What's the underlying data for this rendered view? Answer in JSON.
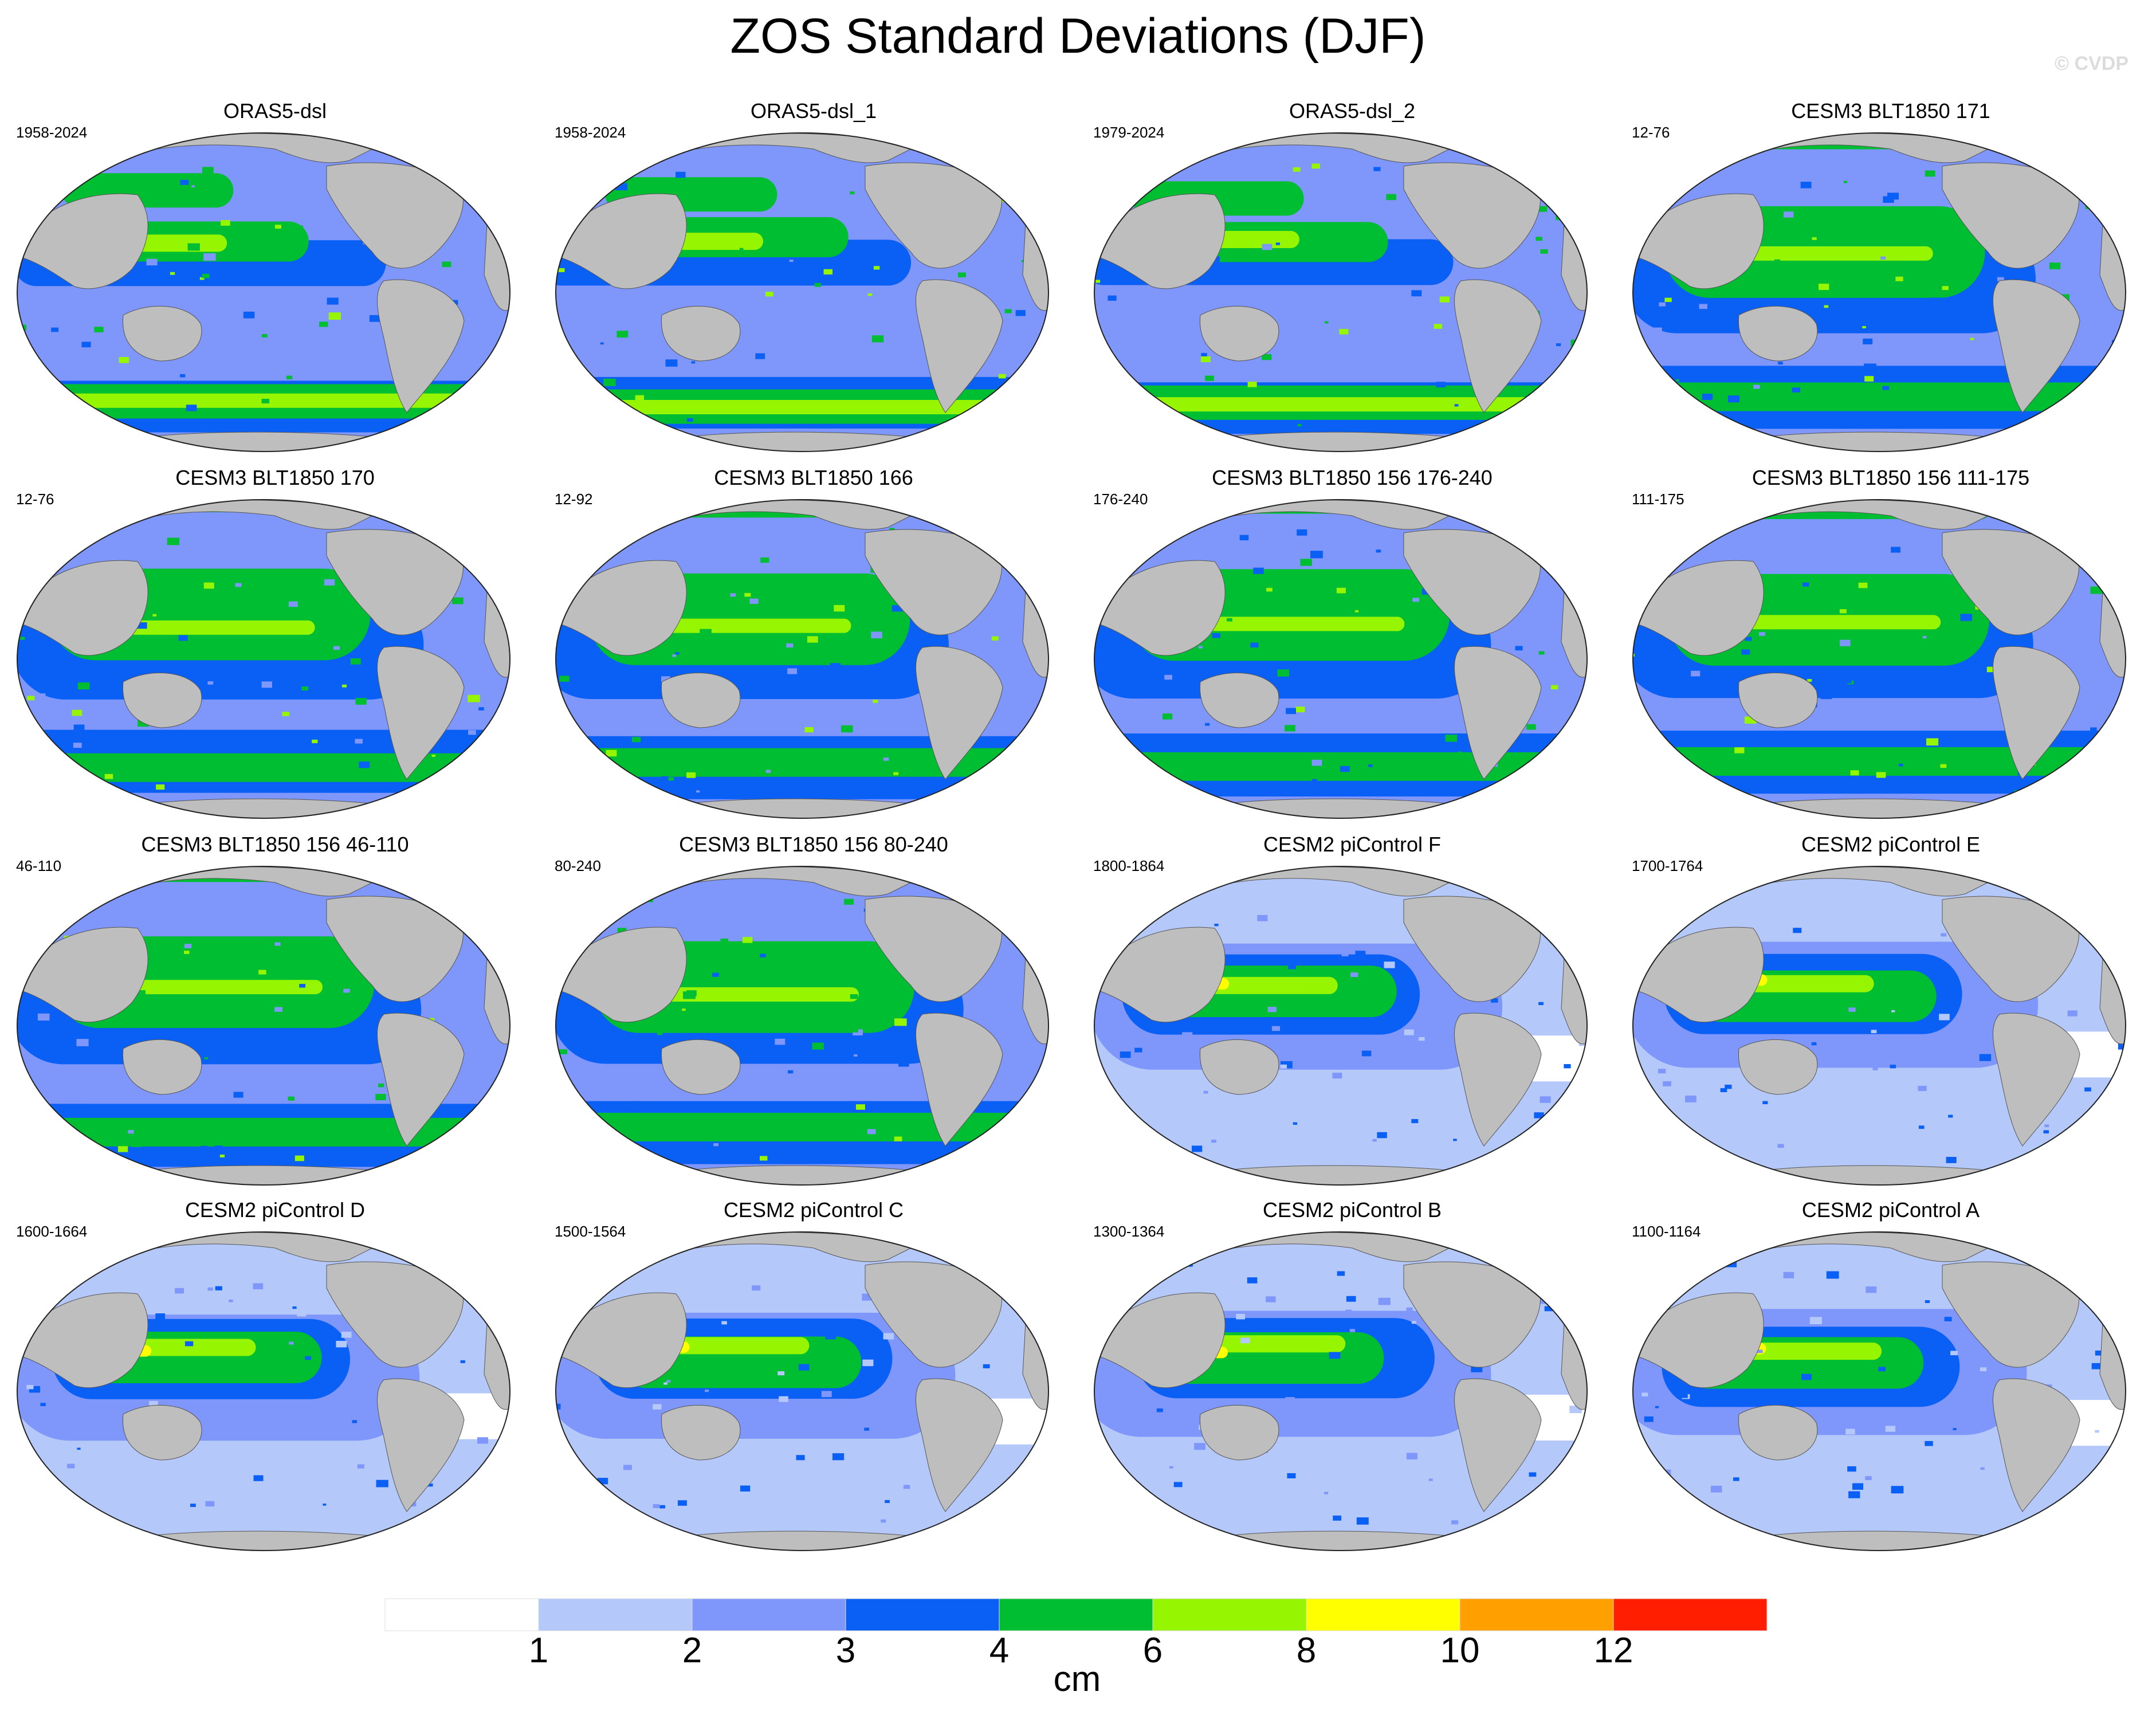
{
  "title": "ZOS Standard Deviations (DJF)",
  "watermark": "© CVDP",
  "panels": [
    {
      "title": "ORAS5-dsl",
      "years": "1958-2024",
      "style": "oras",
      "seed": 1
    },
    {
      "title": "ORAS5-dsl_1",
      "years": "1958-2024",
      "style": "oras",
      "seed": 2
    },
    {
      "title": "ORAS5-dsl_2",
      "years": "1979-2024",
      "style": "oras",
      "seed": 3
    },
    {
      "title": "CESM3 BLT1850 171",
      "years": "12-76",
      "style": "cesm3",
      "seed": 4
    },
    {
      "title": "CESM3 BLT1850 170",
      "years": "12-76",
      "style": "cesm3",
      "seed": 5
    },
    {
      "title": "CESM3 BLT1850 166",
      "years": "12-92",
      "style": "cesm3",
      "seed": 6
    },
    {
      "title": "CESM3 BLT1850 156 176-240",
      "years": "176-240",
      "style": "cesm3",
      "seed": 7
    },
    {
      "title": "CESM3 BLT1850 156 111-175",
      "years": "111-175",
      "style": "cesm3",
      "seed": 8
    },
    {
      "title": "CESM3 BLT1850 156 46-110",
      "years": "46-110",
      "style": "cesm3",
      "seed": 9
    },
    {
      "title": "CESM3 BLT1850 156 80-240",
      "years": "80-240",
      "style": "cesm3",
      "seed": 10
    },
    {
      "title": "CESM2 piControl F",
      "years": "1800-1864",
      "style": "cesm2",
      "seed": 11
    },
    {
      "title": "CESM2 piControl E",
      "years": "1700-1764",
      "style": "cesm2",
      "seed": 12
    },
    {
      "title": "CESM2 piControl D",
      "years": "1600-1664",
      "style": "cesm2",
      "seed": 13
    },
    {
      "title": "CESM2 piControl C",
      "years": "1500-1564",
      "style": "cesm2",
      "seed": 14
    },
    {
      "title": "CESM2 piControl B",
      "years": "1300-1364",
      "style": "cesm2",
      "seed": 15
    },
    {
      "title": "CESM2 piControl A",
      "years": "1100-1164",
      "style": "cesm2",
      "seed": 16
    }
  ],
  "colorbar": {
    "unit": "cm",
    "levels": [
      "1",
      "2",
      "3",
      "4",
      "6",
      "8",
      "10",
      "12"
    ],
    "colors": [
      "#ffffff",
      "#b4c8fa",
      "#7f96fa",
      "#0a5ff5",
      "#00be32",
      "#96f500",
      "#ffff00",
      "#ffa000",
      "#ff1e00"
    ]
  },
  "land_color": "#bebebe",
  "chart_data": {
    "type": "heatmap",
    "title": "ZOS Standard Deviations (DJF)",
    "projection": "Robinson, Pacific-centered",
    "panel_count": 16,
    "layout": "4 rows x 4 columns",
    "colorbar_levels": [
      1,
      2,
      3,
      4,
      6,
      8,
      10,
      12
    ],
    "unit": "cm"
  }
}
